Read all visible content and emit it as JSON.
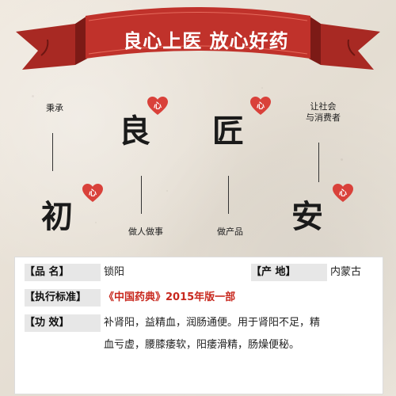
{
  "banner": {
    "text": "良心上医  放心好药"
  },
  "labels": {
    "top_left": "秉承",
    "top_right_line1": "让社会",
    "top_right_line2": "与消费者",
    "bottom_mid_left": "做人做事",
    "bottom_mid_right": "做产品"
  },
  "characters": {
    "liang": "良",
    "jiang": "匠",
    "chu": "初",
    "an": "安"
  },
  "heart": {
    "text": "心",
    "color": "#d9413a"
  },
  "info": {
    "name_label": "【品      名】",
    "name_value": "锁阳",
    "origin_label": "【产      地】",
    "origin_value": "内蒙古",
    "standard_label": "【执行标准】",
    "standard_value": "《中国药典》2015年版一部",
    "effect_label": "【功      效】",
    "effect_line1": "补肾阳，益精血，润肠通便。用于肾阳不足，精",
    "effect_line2": "血亏虚，腰膝痿软，阳痿滑精，肠燥便秘。"
  },
  "colors": {
    "ribbon": "#c0322b",
    "ribbon_dark": "#8e1f1a",
    "accent_text": "#c8281e"
  }
}
